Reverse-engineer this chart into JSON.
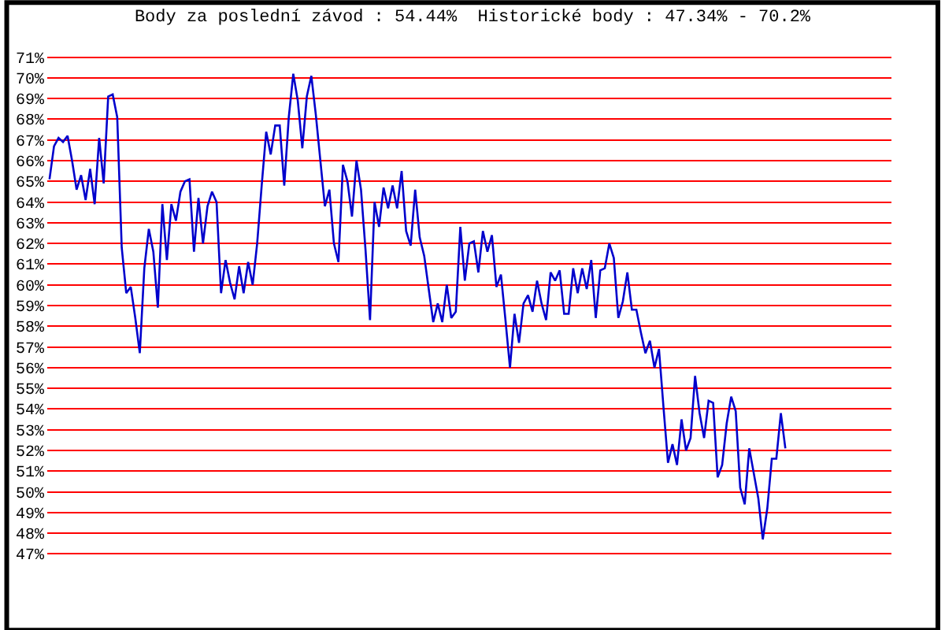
{
  "chart_data": {
    "type": "line",
    "title": "Body za poslední závod : 54.44%  Historické body : 47.34% - 70.2%",
    "color": "#0000cc",
    "grid": "y",
    "marker": "none",
    "line_style": "solid",
    "ylim": [
      46.9,
      71.1
    ],
    "yticks": [
      {
        "value": 47,
        "label": "47%"
      },
      {
        "value": 48,
        "label": "48%"
      },
      {
        "value": 49,
        "label": "49%"
      },
      {
        "value": 50,
        "label": "50%"
      },
      {
        "value": 51,
        "label": "51%"
      },
      {
        "value": 52,
        "label": "52%"
      },
      {
        "value": 53,
        "label": "53%"
      },
      {
        "value": 54,
        "label": "54%"
      },
      {
        "value": 55,
        "label": "55%"
      },
      {
        "value": 56,
        "label": "56%"
      },
      {
        "value": 57,
        "label": "57%"
      },
      {
        "value": 58,
        "label": "58%"
      },
      {
        "value": 59,
        "label": "59%"
      },
      {
        "value": 60,
        "label": "60%"
      },
      {
        "value": 61,
        "label": "61%"
      },
      {
        "value": 62,
        "label": "62%"
      },
      {
        "value": 63,
        "label": "63%"
      },
      {
        "value": 64,
        "label": "64%"
      },
      {
        "value": 65,
        "label": "65%"
      },
      {
        "value": 66,
        "label": "66%"
      },
      {
        "value": 67,
        "label": "67%"
      },
      {
        "value": 68,
        "label": "68%"
      },
      {
        "value": 69,
        "label": "69%"
      },
      {
        "value": 70,
        "label": "70%"
      },
      {
        "value": 71,
        "label": "71%"
      }
    ],
    "values": [
      65.1,
      66.7,
      67.1,
      66.9,
      67.2,
      66.0,
      64.6,
      65.3,
      64.1,
      65.6,
      63.9,
      67.1,
      64.9,
      69.1,
      69.2,
      68.1,
      61.8,
      59.6,
      59.9,
      58.4,
      56.7,
      60.8,
      62.7,
      61.6,
      58.9,
      63.9,
      61.2,
      63.9,
      63.1,
      64.5,
      65.0,
      65.1,
      61.6,
      64.2,
      62.0,
      63.8,
      64.5,
      64.0,
      59.6,
      61.2,
      60.1,
      59.3,
      60.9,
      59.6,
      61.1,
      60.0,
      62.0,
      64.8,
      67.4,
      66.3,
      67.7,
      67.7,
      64.8,
      68.1,
      70.2,
      68.9,
      66.6,
      69.1,
      70.1,
      68.2,
      66.0,
      63.8,
      64.6,
      62.0,
      61.1,
      65.8,
      65.0,
      63.3,
      66.0,
      64.6,
      61.7,
      58.3,
      64.0,
      62.8,
      64.7,
      63.7,
      64.8,
      63.7,
      65.5,
      62.6,
      61.9,
      64.6,
      62.3,
      61.4,
      59.8,
      58.2,
      59.1,
      58.2,
      60.0,
      58.4,
      58.7,
      62.8,
      60.2,
      62.0,
      62.1,
      60.6,
      62.6,
      61.6,
      62.4,
      59.9,
      60.5,
      58.3,
      56.0,
      58.6,
      57.2,
      59.1,
      59.5,
      58.7,
      60.2,
      59.1,
      58.3,
      60.6,
      60.2,
      60.7,
      58.6,
      58.6,
      60.8,
      59.6,
      60.8,
      59.8,
      61.2,
      58.4,
      60.7,
      60.8,
      62.0,
      61.3,
      58.4,
      59.2,
      60.6,
      58.8,
      58.8,
      57.7,
      56.7,
      57.3,
      56.0,
      56.9,
      54.1,
      51.4,
      52.3,
      51.3,
      53.5,
      52.0,
      52.6,
      55.6,
      53.8,
      52.6,
      54.4,
      54.3,
      50.7,
      51.3,
      53.3,
      54.6,
      53.9,
      50.2,
      49.4,
      52.1,
      50.9,
      49.7,
      47.7,
      49.2,
      51.6,
      51.6,
      53.8,
      52.1,
      null,
      null,
      null,
      null,
      null,
      null,
      null,
      null,
      null,
      null,
      null,
      null,
      null,
      null,
      null,
      null,
      null,
      null,
      null,
      null,
      null,
      null,
      null
    ]
  }
}
